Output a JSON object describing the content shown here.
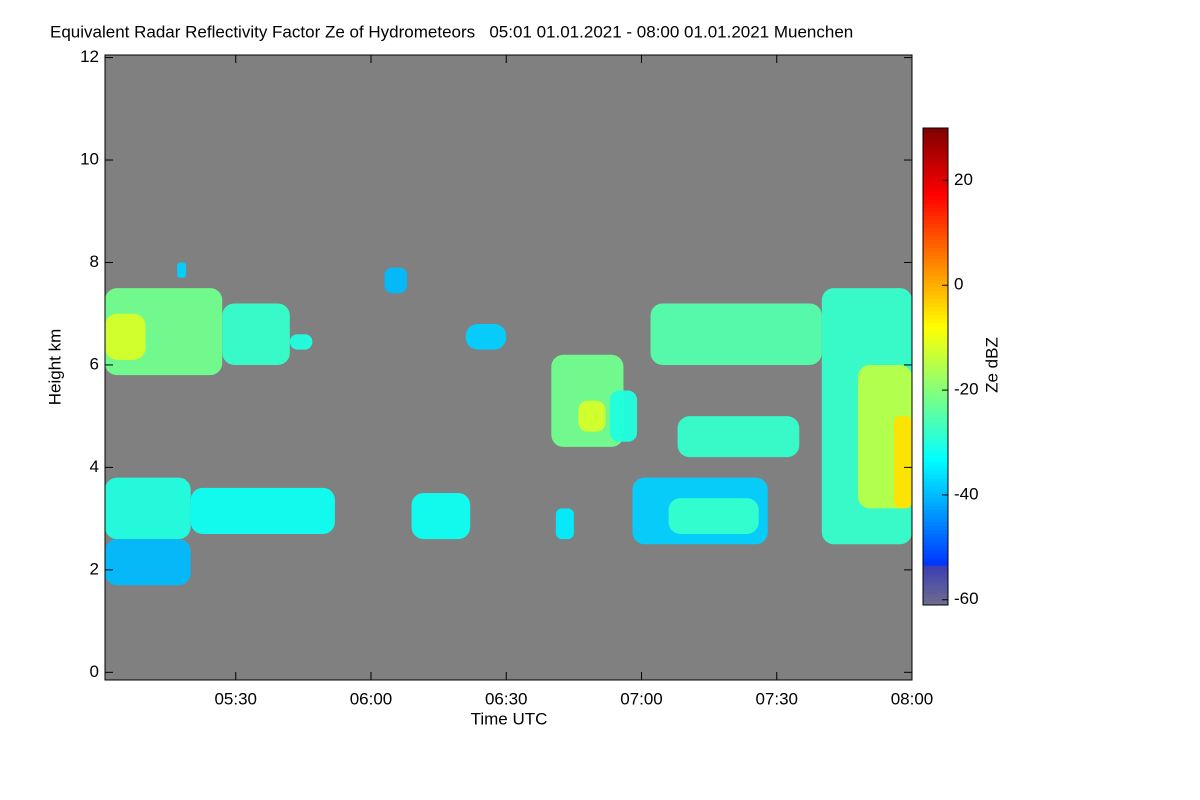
{
  "chart_data": {
    "type": "heatmap",
    "title": "Equivalent Radar Reflectivity Factor Ze of Hydrometeors   05:01 01.01.2021 - 08:00 01.01.2021 Muenchen",
    "x_label": "Time UTC",
    "y_label": "Height km",
    "colorbar_label": "Ze dBZ",
    "background_color": "#808080",
    "xlim": [
      "05:01",
      "08:00"
    ],
    "xticks": [
      "05:30",
      "06:00",
      "06:30",
      "07:00",
      "07:30",
      "08:00"
    ],
    "ylim": [
      -0.15,
      12.05
    ],
    "yticks": [
      0,
      2,
      4,
      6,
      8,
      10,
      12
    ],
    "zlim": [
      -61,
      30
    ],
    "zticks": [
      -60,
      -40,
      -20,
      0,
      20
    ],
    "cells": [
      {
        "x": [
          "05:01",
          "05:27"
        ],
        "y": [
          5.8,
          7.5
        ],
        "value": -22
      },
      {
        "x": [
          "05:01",
          "05:10"
        ],
        "y": [
          6.1,
          7.0
        ],
        "value": -12
      },
      {
        "x": [
          "05:27",
          "05:42"
        ],
        "y": [
          6.0,
          7.2
        ],
        "value": -28
      },
      {
        "x": [
          "05:42",
          "05:47"
        ],
        "y": [
          6.3,
          6.6
        ],
        "value": -30
      },
      {
        "x": [
          "05:01",
          "05:20"
        ],
        "y": [
          2.6,
          3.8
        ],
        "value": -30
      },
      {
        "x": [
          "05:20",
          "05:52"
        ],
        "y": [
          2.7,
          3.6
        ],
        "value": -32
      },
      {
        "x": [
          "05:01",
          "05:20"
        ],
        "y": [
          1.7,
          2.6
        ],
        "value": -40
      },
      {
        "x": [
          "05:17",
          "05:19"
        ],
        "y": [
          7.7,
          8.0
        ],
        "value": -38
      },
      {
        "x": [
          "06:03",
          "06:08"
        ],
        "y": [
          7.4,
          7.9
        ],
        "value": -40
      },
      {
        "x": [
          "06:09",
          "06:22"
        ],
        "y": [
          2.6,
          3.5
        ],
        "value": -32
      },
      {
        "x": [
          "06:21",
          "06:30"
        ],
        "y": [
          6.3,
          6.8
        ],
        "value": -38
      },
      {
        "x": [
          "06:41",
          "06:45"
        ],
        "y": [
          2.6,
          3.2
        ],
        "value": -35
      },
      {
        "x": [
          "06:40",
          "06:56"
        ],
        "y": [
          4.4,
          6.2
        ],
        "value": -22
      },
      {
        "x": [
          "06:46",
          "06:52"
        ],
        "y": [
          4.7,
          5.3
        ],
        "value": -12
      },
      {
        "x": [
          "06:53",
          "06:59"
        ],
        "y": [
          4.5,
          5.5
        ],
        "value": -30
      },
      {
        "x": [
          "06:58",
          "07:28"
        ],
        "y": [
          2.5,
          3.8
        ],
        "value": -38
      },
      {
        "x": [
          "07:06",
          "07:26"
        ],
        "y": [
          2.7,
          3.4
        ],
        "value": -28
      },
      {
        "x": [
          "07:02",
          "07:40"
        ],
        "y": [
          6.0,
          7.2
        ],
        "value": -25
      },
      {
        "x": [
          "07:08",
          "07:35"
        ],
        "y": [
          4.2,
          5.0
        ],
        "value": -28
      },
      {
        "x": [
          "07:40",
          "08:00"
        ],
        "y": [
          2.5,
          7.5
        ],
        "value": -28
      },
      {
        "x": [
          "07:48",
          "08:00"
        ],
        "y": [
          3.2,
          6.0
        ],
        "value": -15
      },
      {
        "x": [
          "07:56",
          "08:00"
        ],
        "y": [
          3.2,
          5.0
        ],
        "value": -5
      }
    ]
  }
}
